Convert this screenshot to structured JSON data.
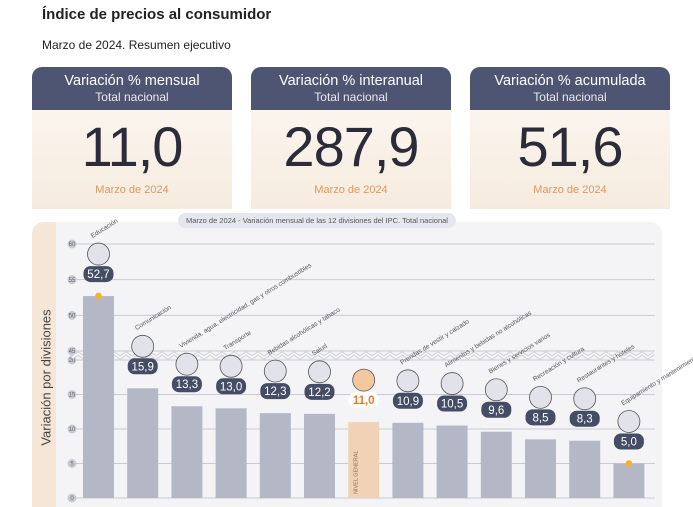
{
  "header": {
    "title": "Índice de precios al consumidor",
    "subtitle": "Marzo de 2024. Resumen ejecutivo"
  },
  "cards": [
    {
      "title": "Variación % mensual",
      "subtitle": "Total nacional",
      "value": "11,0",
      "date": "Marzo de 2024"
    },
    {
      "title": "Variación % interanual",
      "subtitle": "Total nacional",
      "value": "287,9",
      "date": "Marzo de 2024"
    },
    {
      "title": "Variación % acumulada",
      "subtitle": "Total nacional",
      "value": "51,6",
      "date": "Marzo de 2024"
    }
  ],
  "colors": {
    "bar": "#b4b8c6",
    "bar_general": "#f2d2b6",
    "label_badge": "#454c66",
    "label_general": "#e57a2c",
    "card_header": "#4d5572",
    "marker": "#f2b233"
  },
  "chart_data": {
    "type": "bar",
    "title": "Marzo de 2024 - Variación mensual de las 12 divisiones del IPC. Total nacional",
    "ylabel": "Variación por divisiones",
    "y_axis_break": [
      20,
      45
    ],
    "y_ticks_lower": [
      0,
      5,
      10,
      15,
      20
    ],
    "y_ticks_upper": [
      45,
      50,
      55,
      60
    ],
    "ylim": [
      0,
      60
    ],
    "grid": true,
    "categories": [
      "Educación",
      "Comunicación",
      "Vivienda, agua, electricidad, gas y otros combustibles",
      "Transporte",
      "Bebidas alcohólicas y tabaco",
      "Salud",
      "NIVEL GENERAL",
      "Prendas de vestir y calzado",
      "Alimentos y bebidas no alcohólicas",
      "Bienes y servicios varios",
      "Recreación y cultura",
      "Restaurantes y hoteles",
      "Equipamiento y mantenimiento del hogar"
    ],
    "values": [
      52.7,
      15.9,
      13.3,
      13.0,
      12.3,
      12.2,
      11.0,
      10.9,
      10.5,
      9.6,
      8.5,
      8.3,
      5.0
    ],
    "value_labels": [
      "52,7",
      "15,9",
      "13,3",
      "13,0",
      "12,3",
      "12,2",
      "11,0",
      "10,9",
      "10,5",
      "9,6",
      "8,5",
      "8,3",
      "5,0"
    ],
    "icons": [
      "graduation-cap-icon",
      "phone-icon",
      "lightbulb-icon",
      "car-icon",
      "bottle-glass-icon",
      "medical-cross-icon",
      "shopping-basket-icon",
      "shirt-shoe-icon",
      "food-plate-icon",
      "razor-icon",
      "beach-umbrella-icon",
      "cutlery-icon",
      "washing-machine-icon"
    ],
    "max_marker": 0,
    "min_marker": 12,
    "general_index": 6
  }
}
